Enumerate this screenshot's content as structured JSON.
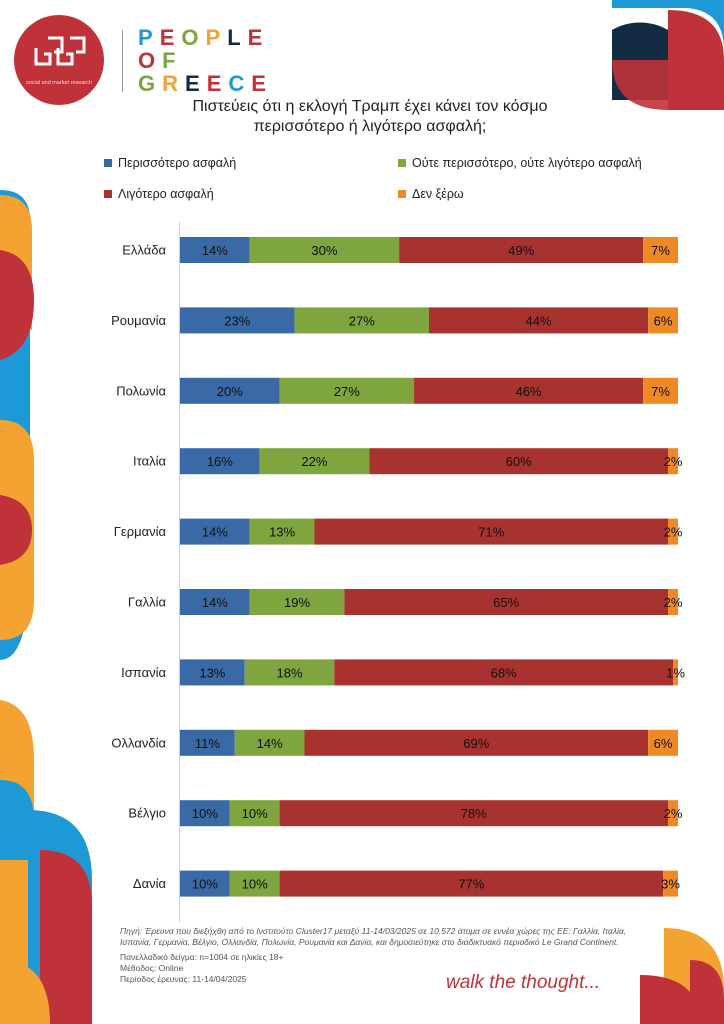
{
  "logo": {
    "subtitle": "social and market research"
  },
  "brand": {
    "line1": "PEOPLE",
    "line2": "OF",
    "line3": "GREECE"
  },
  "title_line1": "Πιστεύεις ότι η εκλογή Τραμπ έχει κάνει τον κόσμο",
  "title_line2": "περισσότερο ή λιγότερο ασφαλή;",
  "colors": {
    "blue": "#3a6aa6",
    "green": "#7ea53e",
    "red": "#a8322f",
    "orange": "#ee8a25",
    "brand_red": "#c0323a"
  },
  "chart_data": {
    "type": "bar",
    "orientation": "horizontal-stacked-100",
    "categories": [
      "Ελλάδα",
      "Ρουμανία",
      "Πολωνία",
      "Ιταλία",
      "Γερμανία",
      "Γαλλία",
      "Ισπανία",
      "Ολλανδία",
      "Βέλγιο",
      "Δανία"
    ],
    "series": [
      {
        "name": "Περισσότερο ασφαλή",
        "color": "#3a6aa6",
        "values": [
          14,
          23,
          20,
          16,
          14,
          14,
          13,
          11,
          10,
          10
        ]
      },
      {
        "name": "Ούτε περισσότερο, ούτε λιγότερο ασφαλή",
        "color": "#7ea53e",
        "values": [
          30,
          27,
          27,
          22,
          13,
          19,
          18,
          14,
          10,
          10
        ]
      },
      {
        "name": "Λιγότερο ασφαλή",
        "color": "#a8322f",
        "values": [
          49,
          44,
          46,
          60,
          71,
          65,
          68,
          69,
          78,
          77
        ]
      },
      {
        "name": "Δεν ξέρω",
        "color": "#ee8a25",
        "values": [
          7,
          6,
          7,
          2,
          2,
          2,
          1,
          6,
          2,
          3
        ]
      }
    ],
    "value_suffix": "%",
    "legend_position": "top",
    "grid": false
  },
  "footer": {
    "source": "Πηγή: Έρευνα που διεξήχθη από το Ινστιτούτο Cluster17 μεταξύ 11-14/03/2025 σε 10.572 άτομα σε εννέα χώρες της ΕΕ: Γαλλία, Ιταλία, Ισπανία, Γερμανία, Βέλγιο, Ολλανδία, Πολωνία, Ρουμανία και Δανία, και δημοσιεύτηκε στο διαδικτυακό περιοδικό Le Grand Continent.",
    "sample": "Πανελλαδικό δείγμα: n=1004 σε ηλικίες 18+",
    "method": "Μέθοδος: Online",
    "period": "Περίοδος έρευνας: 11-14/04/2025"
  },
  "tagline": "walk the thought..."
}
